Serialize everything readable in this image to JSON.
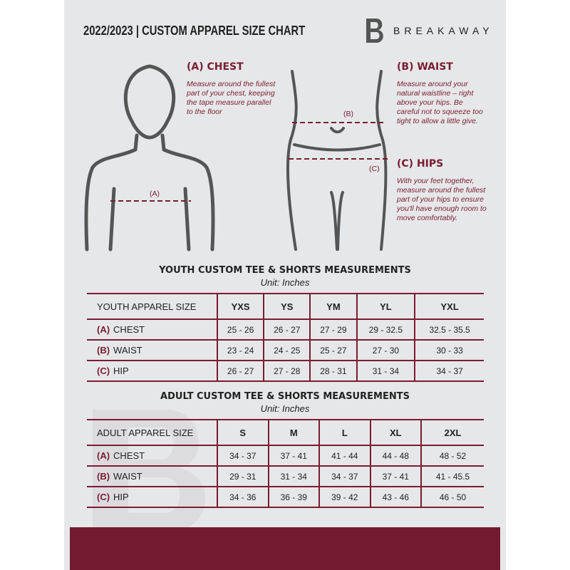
{
  "header": {
    "title": "2022/2023  |  CUSTOM APPAREL SIZE CHART",
    "brand": "BREAKAWAY",
    "logo_letter": "B"
  },
  "measures": {
    "chest": {
      "heading": "(A) CHEST",
      "marker": "(A)",
      "description": "Measure around the fullest part of your chest, keeping the tape measure parallel to the floor"
    },
    "waist": {
      "heading": "(B) WAIST",
      "marker": "(B)",
      "description": "Measure around your natural waistline – right above your hips. Be careful not to squeeze too tight to allow a little give."
    },
    "hips": {
      "heading": "(C) HIPS",
      "marker": "(C)",
      "description": "With your feet together, measure around the fullest part of your hips to ensure you'll have enough room to move comfortably."
    }
  },
  "colors": {
    "accent": "#7a1c32",
    "background": "#e6e7e8"
  },
  "youth": {
    "title": "YOUTH CUSTOM TEE & SHORTS MEASUREMENTS",
    "unit": "Unit: Inches",
    "header": "YOUTH APPAREL SIZE",
    "sizes": [
      "YXS",
      "YS",
      "YM",
      "YL",
      "YXL"
    ],
    "rows": [
      {
        "key": "(A)",
        "label": "CHEST",
        "values": [
          "25 - 26",
          "26 - 27",
          "27 - 29",
          "29 - 32.5",
          "32.5 - 35.5"
        ]
      },
      {
        "key": "(B)",
        "label": "WAIST",
        "values": [
          "23 - 24",
          "24 - 25",
          "25 - 27",
          "27 - 30",
          "30 - 33"
        ]
      },
      {
        "key": "(C)",
        "label": "HIP",
        "values": [
          "26 - 27",
          "27 - 28",
          "28 - 31",
          "31 - 34",
          "34 - 37"
        ]
      }
    ]
  },
  "adult": {
    "title": "ADULT CUSTOM TEE & SHORTS MEASUREMENTS",
    "unit": "Unit: Inches",
    "header": "ADULT APPAREL SIZE",
    "sizes": [
      "S",
      "M",
      "L",
      "XL",
      "2XL"
    ],
    "rows": [
      {
        "key": "(A)",
        "label": "CHEST",
        "values": [
          "34 - 37",
          "37 - 41",
          "41 - 44",
          "44 - 48",
          "48 - 52"
        ]
      },
      {
        "key": "(B)",
        "label": "WAIST",
        "values": [
          "29 - 31",
          "31 - 34",
          "34 - 37",
          "37 - 41",
          "41 - 45.5"
        ]
      },
      {
        "key": "(C)",
        "label": "HIP",
        "values": [
          "34 - 36",
          "36 - 39",
          "39 - 42",
          "43 - 46",
          "46 - 50"
        ]
      }
    ]
  }
}
